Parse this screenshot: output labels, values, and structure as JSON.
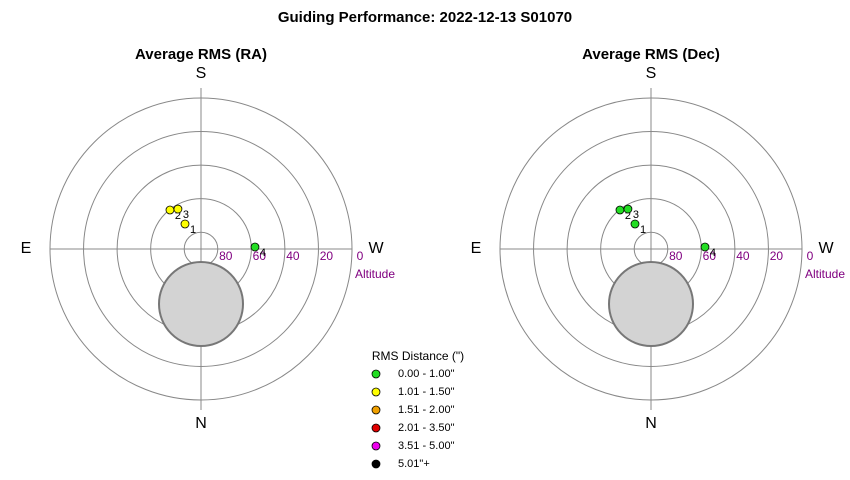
{
  "title": "Guiding Performance: 2022-12-13 S01070",
  "chart_data": [
    {
      "type": "polar",
      "title": "Average RMS (RA)",
      "direction_labels": [
        "N",
        "E",
        "S",
        "W"
      ],
      "r_label": "Altitude",
      "rlim": [
        90,
        0
      ],
      "rticks": [
        80,
        60,
        40,
        20,
        0
      ],
      "labels": [
        "1",
        "2",
        "3",
        "4"
      ],
      "azimuth": [
        147.4,
        141.5,
        150,
        267.9
      ],
      "altitude": [
        72.3,
        60.3,
        62.5,
        57.8
      ],
      "colors": [
        "#ffff00",
        "#ffff00",
        "#ffff00",
        "#22dd22"
      ]
    },
    {
      "type": "polar",
      "title": "Average RMS (Dec)",
      "direction_labels": [
        "N",
        "E",
        "S",
        "W"
      ],
      "r_label": "Altitude",
      "rlim": [
        90,
        0
      ],
      "rticks": [
        80,
        60,
        40,
        20,
        0
      ],
      "labels": [
        "1",
        "2",
        "3",
        "4"
      ],
      "azimuth": [
        147.4,
        141.5,
        150,
        267.9
      ],
      "altitude": [
        72.3,
        60.3,
        62.5,
        57.8
      ],
      "colors": [
        "#22dd22",
        "#22dd22",
        "#22dd22",
        "#22dd22"
      ]
    }
  ],
  "legend": {
    "title": "RMS Distance (\")",
    "items": [
      {
        "label": "0.00 - 1.00\"",
        "color": "#22dd22"
      },
      {
        "label": "1.01 - 1.50\"",
        "color": "#ffff00"
      },
      {
        "label": "1.51 - 2.00\"",
        "color": "#f0a000"
      },
      {
        "label": "2.01 - 3.50\"",
        "color": "#e00000"
      },
      {
        "label": "3.51 - 5.00\"",
        "color": "#ee00ee"
      },
      {
        "label": "5.01\"+",
        "color": "#000000"
      }
    ]
  }
}
